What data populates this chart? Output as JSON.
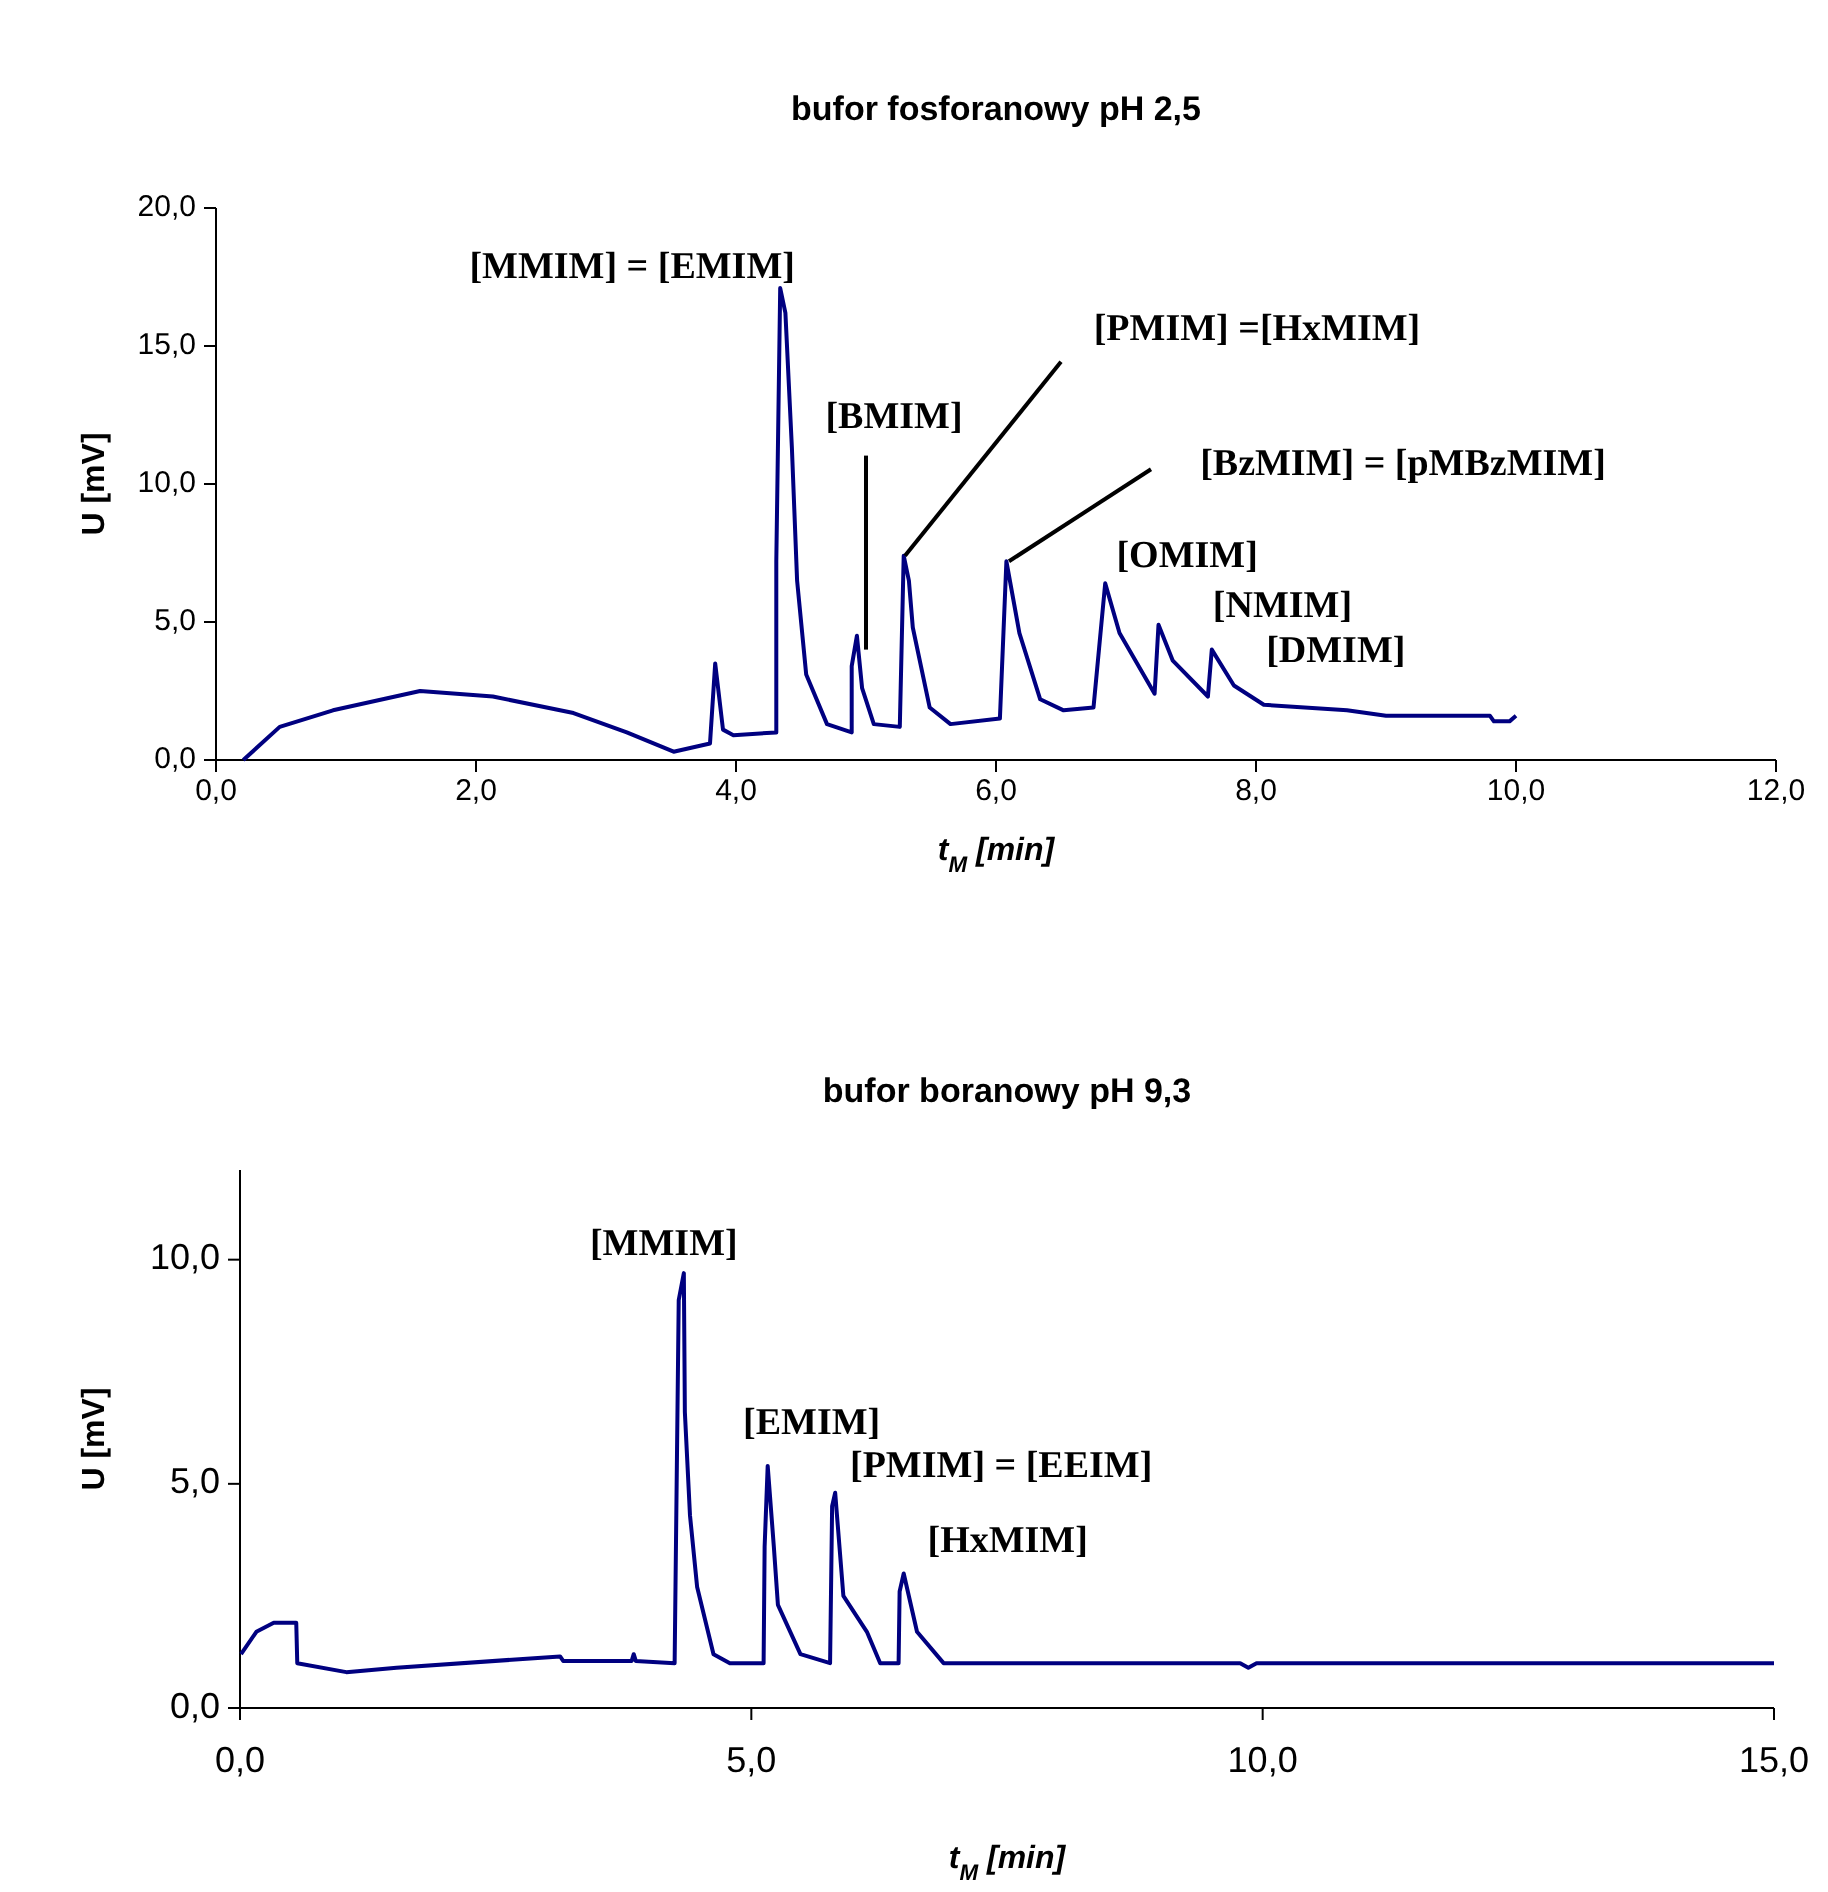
{
  "chart_data": [
    {
      "type": "line",
      "title": "bufor fosforanowy pH 2,5",
      "xlabel": "t$_{M}$ [min]",
      "ylabel": "U [mV]",
      "xlim": [
        0,
        12
      ],
      "ylim": [
        0,
        20
      ],
      "xticks": [
        {
          "value": 0,
          "label": "0,0"
        },
        {
          "value": 2,
          "label": "2,0"
        },
        {
          "value": 4,
          "label": "4,0"
        },
        {
          "value": 6,
          "label": "6,0"
        },
        {
          "value": 8,
          "label": "8,0"
        },
        {
          "value": 10,
          "label": "10,0"
        },
        {
          "value": 12,
          "label": "12,0"
        }
      ],
      "yticks": [
        {
          "value": 0,
          "label": "0,0"
        },
        {
          "value": 5,
          "label": "5,0"
        },
        {
          "value": 10,
          "label": "10,0"
        },
        {
          "value": 15,
          "label": "15,0"
        },
        {
          "value": 20,
          "label": "20,0"
        }
      ],
      "grid": false,
      "marker": "none",
      "line_style": "solid",
      "series": [
        {
          "color": "#000080",
          "x": [
            0.21,
            0.49,
            0.9,
            1.57,
            2.13,
            2.75,
            3.16,
            3.52,
            3.8,
            3.84,
            3.9,
            3.98,
            4.31,
            4.31,
            4.34,
            4.38,
            4.43,
            4.47,
            4.54,
            4.7,
            4.89,
            4.89,
            4.93,
            4.97,
            5.06,
            5.26,
            5.29,
            5.33,
            5.36,
            5.49,
            5.65,
            6.03,
            6.08,
            6.18,
            6.34,
            6.52,
            6.75,
            6.84,
            6.95,
            7.22,
            7.25,
            7.36,
            7.63,
            7.66,
            7.83,
            8.06,
            8.7,
            9.0,
            9.8,
            9.83,
            9.95,
            10.0
          ],
          "values": [
            0,
            1.2,
            1.8,
            2.5,
            2.3,
            1.7,
            1.0,
            0.3,
            0.6,
            3.5,
            1.1,
            0.9,
            1.0,
            7.2,
            17.1,
            16.2,
            11.3,
            6.5,
            3.1,
            1.3,
            1.0,
            3.4,
            4.5,
            2.6,
            1.3,
            1.2,
            7.4,
            6.5,
            4.8,
            1.9,
            1.3,
            1.5,
            7.2,
            4.6,
            2.2,
            1.8,
            1.9,
            6.4,
            4.6,
            2.4,
            4.9,
            3.6,
            2.3,
            4.0,
            2.7,
            2.0,
            1.8,
            1.6,
            1.6,
            1.4,
            1.4,
            1.6
          ]
        }
      ],
      "annotations": [
        {
          "text": "[MMIM] = [EMIM]",
          "x": 4.34,
          "y": 17.1
        },
        {
          "text": "[BMIM]",
          "x": 5.0,
          "y": 4.0
        },
        {
          "text": "[PMIM] =[HxMIM]",
          "x": 5.3,
          "y": 7.4
        },
        {
          "text": "[BzMIM] = [pMBzMIM]",
          "x": 6.1,
          "y": 7.2
        },
        {
          "text": "[OMIM]",
          "x": 6.84,
          "y": 6.4
        },
        {
          "text": "[NMIM]",
          "x": 7.25,
          "y": 4.9
        },
        {
          "text": "[DMIM]",
          "x": 7.66,
          "y": 4.0
        }
      ]
    },
    {
      "type": "line",
      "title": "bufor boranowy pH 9,3",
      "xlabel": "t$_{M}$ [min]",
      "ylabel": "U [mV]",
      "xlim": [
        0,
        15
      ],
      "ylim": [
        0,
        12
      ],
      "xticks": [
        {
          "value": 0,
          "label": "0,0"
        },
        {
          "value": 5,
          "label": "5,0"
        },
        {
          "value": 10,
          "label": "10,0"
        },
        {
          "value": 15,
          "label": "15,0"
        }
      ],
      "yticks": [
        {
          "value": 0,
          "label": "0,0"
        },
        {
          "value": 5,
          "label": "5,0"
        },
        {
          "value": 10,
          "label": "10,0"
        }
      ],
      "grid": false,
      "marker": "none",
      "line_style": "solid",
      "series": [
        {
          "color": "#000080",
          "x": [
            0.01,
            0.16,
            0.33,
            0.55,
            0.56,
            1.04,
            1.53,
            3.13,
            3.16,
            3.83,
            3.85,
            3.87,
            4.25,
            4.29,
            4.34,
            4.35,
            4.4,
            4.47,
            4.63,
            4.79,
            5.12,
            5.13,
            5.16,
            5.22,
            5.26,
            5.48,
            5.77,
            5.79,
            5.82,
            5.9,
            6.13,
            6.26,
            6.44,
            6.45,
            6.49,
            6.62,
            6.88,
            9.78,
            9.86,
            9.94,
            15.0
          ],
          "values": [
            1.2,
            1.7,
            1.9,
            1.9,
            1.0,
            0.8,
            0.9,
            1.15,
            1.05,
            1.05,
            1.2,
            1.05,
            1.0,
            9.1,
            9.7,
            6.6,
            4.3,
            2.7,
            1.2,
            1.0,
            1.0,
            3.6,
            5.4,
            3.6,
            2.3,
            1.2,
            1.0,
            4.5,
            4.8,
            2.5,
            1.7,
            1.0,
            1.0,
            2.6,
            3.0,
            1.7,
            1.0,
            1.0,
            0.9,
            1.0,
            1.0
          ]
        }
      ],
      "annotations": [
        {
          "text": "[MMIM]",
          "x": 4.34,
          "y": 9.7
        },
        {
          "text": "[EMIM]",
          "x": 5.16,
          "y": 5.4
        },
        {
          "text": "[PMIM] = [EEIM]",
          "x": 5.82,
          "y": 4.8
        },
        {
          "text": "[HxMIM]",
          "x": 6.49,
          "y": 3.0
        }
      ]
    }
  ]
}
